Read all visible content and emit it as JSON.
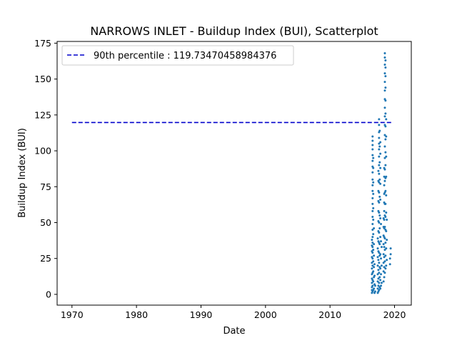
{
  "chart_data": {
    "type": "scatter",
    "title": "NARROWS INLET - Buildup Index (BUI), Scatterplot",
    "xlabel": "Date",
    "ylabel": "Buildup Index (BUI)",
    "xlim": [
      1967.7,
      2022.6
    ],
    "ylim": [
      -7.5,
      176.2
    ],
    "x_ticks": [
      1970,
      1980,
      1990,
      2000,
      2010,
      2020
    ],
    "y_ticks": [
      0,
      25,
      50,
      75,
      100,
      125,
      150,
      175
    ],
    "grid": false,
    "legend_position": "top-left",
    "reference_line": {
      "label": "90th percentile : 119.73470458984376",
      "y": 119.73470458984376,
      "x_range": [
        1970,
        2019.8
      ],
      "color": "#0000cc",
      "style": "dashed"
    },
    "series": [
      {
        "color": "#1f77b4",
        "points": [
          [
            2016.5,
            1
          ],
          [
            2016.5,
            3
          ],
          [
            2016.5,
            5
          ],
          [
            2016.5,
            8
          ],
          [
            2016.5,
            11
          ],
          [
            2016.5,
            14
          ],
          [
            2016.5,
            18
          ],
          [
            2016.5,
            22
          ],
          [
            2016.5,
            26
          ],
          [
            2016.5,
            30
          ],
          [
            2016.5,
            34
          ],
          [
            2016.5,
            38
          ],
          [
            2016.6,
            2
          ],
          [
            2016.6,
            6
          ],
          [
            2016.6,
            10
          ],
          [
            2016.6,
            15
          ],
          [
            2016.6,
            20
          ],
          [
            2016.6,
            25
          ],
          [
            2016.6,
            29
          ],
          [
            2016.6,
            33
          ],
          [
            2016.6,
            36
          ],
          [
            2016.6,
            40
          ],
          [
            2016.6,
            45
          ],
          [
            2016.6,
            49
          ],
          [
            2016.6,
            54
          ],
          [
            2016.6,
            58
          ],
          [
            2016.6,
            63
          ],
          [
            2016.6,
            67
          ],
          [
            2016.6,
            72
          ],
          [
            2016.6,
            76
          ],
          [
            2016.6,
            80
          ],
          [
            2016.6,
            85
          ],
          [
            2016.6,
            89
          ],
          [
            2016.6,
            93
          ],
          [
            2016.6,
            97
          ],
          [
            2016.6,
            101
          ],
          [
            2016.6,
            104
          ],
          [
            2016.6,
            107
          ],
          [
            2016.6,
            110
          ],
          [
            2016.7,
            3
          ],
          [
            2016.7,
            9
          ],
          [
            2016.7,
            16
          ],
          [
            2016.7,
            23
          ],
          [
            2016.7,
            31
          ],
          [
            2016.7,
            42
          ],
          [
            2016.7,
            52
          ],
          [
            2016.7,
            60
          ],
          [
            2016.7,
            70
          ],
          [
            2016.7,
            78
          ],
          [
            2016.7,
            88
          ],
          [
            2016.7,
            95
          ],
          [
            2016.8,
            4
          ],
          [
            2016.8,
            12
          ],
          [
            2016.8,
            19
          ],
          [
            2016.8,
            27
          ],
          [
            2016.8,
            35
          ],
          [
            2016.8,
            46
          ],
          [
            2016.9,
            1
          ],
          [
            2016.9,
            7
          ],
          [
            2016.9,
            13
          ],
          [
            2016.9,
            21
          ],
          [
            2017.0,
            2
          ],
          [
            2017.0,
            6
          ],
          [
            2017.4,
            1
          ],
          [
            2017.4,
            4
          ],
          [
            2017.4,
            9
          ],
          [
            2017.4,
            14
          ],
          [
            2017.4,
            20
          ],
          [
            2017.4,
            26
          ],
          [
            2017.4,
            32
          ],
          [
            2017.4,
            39
          ],
          [
            2017.5,
            2
          ],
          [
            2017.5,
            6
          ],
          [
            2017.5,
            11
          ],
          [
            2017.5,
            17
          ],
          [
            2017.5,
            24
          ],
          [
            2017.5,
            30
          ],
          [
            2017.5,
            37
          ],
          [
            2017.5,
            44
          ],
          [
            2017.5,
            51
          ],
          [
            2017.5,
            58
          ],
          [
            2017.5,
            65
          ],
          [
            2017.5,
            72
          ],
          [
            2017.5,
            79
          ],
          [
            2017.5,
            86
          ],
          [
            2017.6,
            3
          ],
          [
            2017.6,
            8
          ],
          [
            2017.6,
            15
          ],
          [
            2017.6,
            22
          ],
          [
            2017.6,
            29
          ],
          [
            2017.6,
            36
          ],
          [
            2017.6,
            43
          ],
          [
            2017.6,
            50
          ],
          [
            2017.6,
            57
          ],
          [
            2017.6,
            64
          ],
          [
            2017.6,
            71
          ],
          [
            2017.6,
            78
          ],
          [
            2017.6,
            84
          ],
          [
            2017.6,
            90
          ],
          [
            2017.6,
            96
          ],
          [
            2017.6,
            101
          ],
          [
            2017.6,
            105
          ],
          [
            2017.6,
            109
          ],
          [
            2017.6,
            113
          ],
          [
            2017.6,
            118
          ],
          [
            2017.6,
            122
          ],
          [
            2017.7,
            5
          ],
          [
            2017.7,
            12
          ],
          [
            2017.7,
            19
          ],
          [
            2017.7,
            27
          ],
          [
            2017.7,
            35
          ],
          [
            2017.7,
            46
          ],
          [
            2017.7,
            55
          ],
          [
            2017.7,
            68
          ],
          [
            2017.7,
            80
          ],
          [
            2017.7,
            92
          ],
          [
            2017.7,
            103
          ],
          [
            2017.7,
            114
          ],
          [
            2017.8,
            4
          ],
          [
            2017.8,
            10
          ],
          [
            2017.8,
            18
          ],
          [
            2017.8,
            28
          ],
          [
            2017.8,
            40
          ],
          [
            2017.8,
            53
          ],
          [
            2017.8,
            66
          ],
          [
            2017.8,
            77
          ],
          [
            2017.8,
            88
          ],
          [
            2017.8,
            98
          ],
          [
            2017.8,
            106
          ],
          [
            2017.9,
            6
          ],
          [
            2017.9,
            14
          ],
          [
            2017.9,
            25
          ],
          [
            2017.9,
            37
          ],
          [
            2017.9,
            49
          ],
          [
            2018.0,
            8
          ],
          [
            2018.0,
            20
          ],
          [
            2018.0,
            33
          ],
          [
            2018.3,
            9
          ],
          [
            2018.3,
            16
          ],
          [
            2018.3,
            22
          ],
          [
            2018.3,
            28
          ],
          [
            2018.3,
            35
          ],
          [
            2018.3,
            41
          ],
          [
            2018.3,
            47
          ],
          [
            2018.3,
            53
          ],
          [
            2018.4,
            12
          ],
          [
            2018.4,
            19
          ],
          [
            2018.4,
            26
          ],
          [
            2018.4,
            33
          ],
          [
            2018.4,
            40
          ],
          [
            2018.4,
            46
          ],
          [
            2018.4,
            52
          ],
          [
            2018.4,
            58
          ],
          [
            2018.4,
            64
          ],
          [
            2018.4,
            70
          ],
          [
            2018.4,
            76
          ],
          [
            2018.4,
            82
          ],
          [
            2018.4,
            88
          ],
          [
            2018.5,
            15
          ],
          [
            2018.5,
            23
          ],
          [
            2018.5,
            31
          ],
          [
            2018.5,
            39
          ],
          [
            2018.5,
            47
          ],
          [
            2018.5,
            55
          ],
          [
            2018.5,
            63
          ],
          [
            2018.5,
            71
          ],
          [
            2018.5,
            79
          ],
          [
            2018.5,
            87
          ],
          [
            2018.5,
            95
          ],
          [
            2018.5,
            103
          ],
          [
            2018.5,
            111
          ],
          [
            2018.5,
            118
          ],
          [
            2018.5,
            124
          ],
          [
            2018.5,
            130
          ],
          [
            2018.5,
            136
          ],
          [
            2018.5,
            142
          ],
          [
            2018.5,
            148
          ],
          [
            2018.5,
            154
          ],
          [
            2018.5,
            160
          ],
          [
            2018.5,
            165
          ],
          [
            2018.5,
            168
          ],
          [
            2018.6,
            18
          ],
          [
            2018.6,
            27
          ],
          [
            2018.6,
            36
          ],
          [
            2018.6,
            45
          ],
          [
            2018.6,
            54
          ],
          [
            2018.6,
            63
          ],
          [
            2018.6,
            72
          ],
          [
            2018.6,
            81
          ],
          [
            2018.6,
            90
          ],
          [
            2018.6,
            99
          ],
          [
            2018.6,
            108
          ],
          [
            2018.6,
            117
          ],
          [
            2018.6,
            126
          ],
          [
            2018.6,
            135
          ],
          [
            2018.6,
            144
          ],
          [
            2018.6,
            152
          ],
          [
            2018.6,
            158
          ],
          [
            2018.6,
            163
          ],
          [
            2018.7,
            20
          ],
          [
            2018.7,
            32
          ],
          [
            2018.7,
            44
          ],
          [
            2018.7,
            57
          ],
          [
            2018.7,
            69
          ],
          [
            2018.7,
            82
          ],
          [
            2018.7,
            96
          ],
          [
            2018.7,
            110
          ],
          [
            2018.7,
            122
          ],
          [
            2018.8,
            24
          ],
          [
            2018.8,
            38
          ],
          [
            2018.8,
            52
          ],
          [
            2019.3,
            21
          ],
          [
            2019.3,
            25
          ],
          [
            2019.4,
            28
          ],
          [
            2019.4,
            32
          ]
        ]
      }
    ]
  }
}
